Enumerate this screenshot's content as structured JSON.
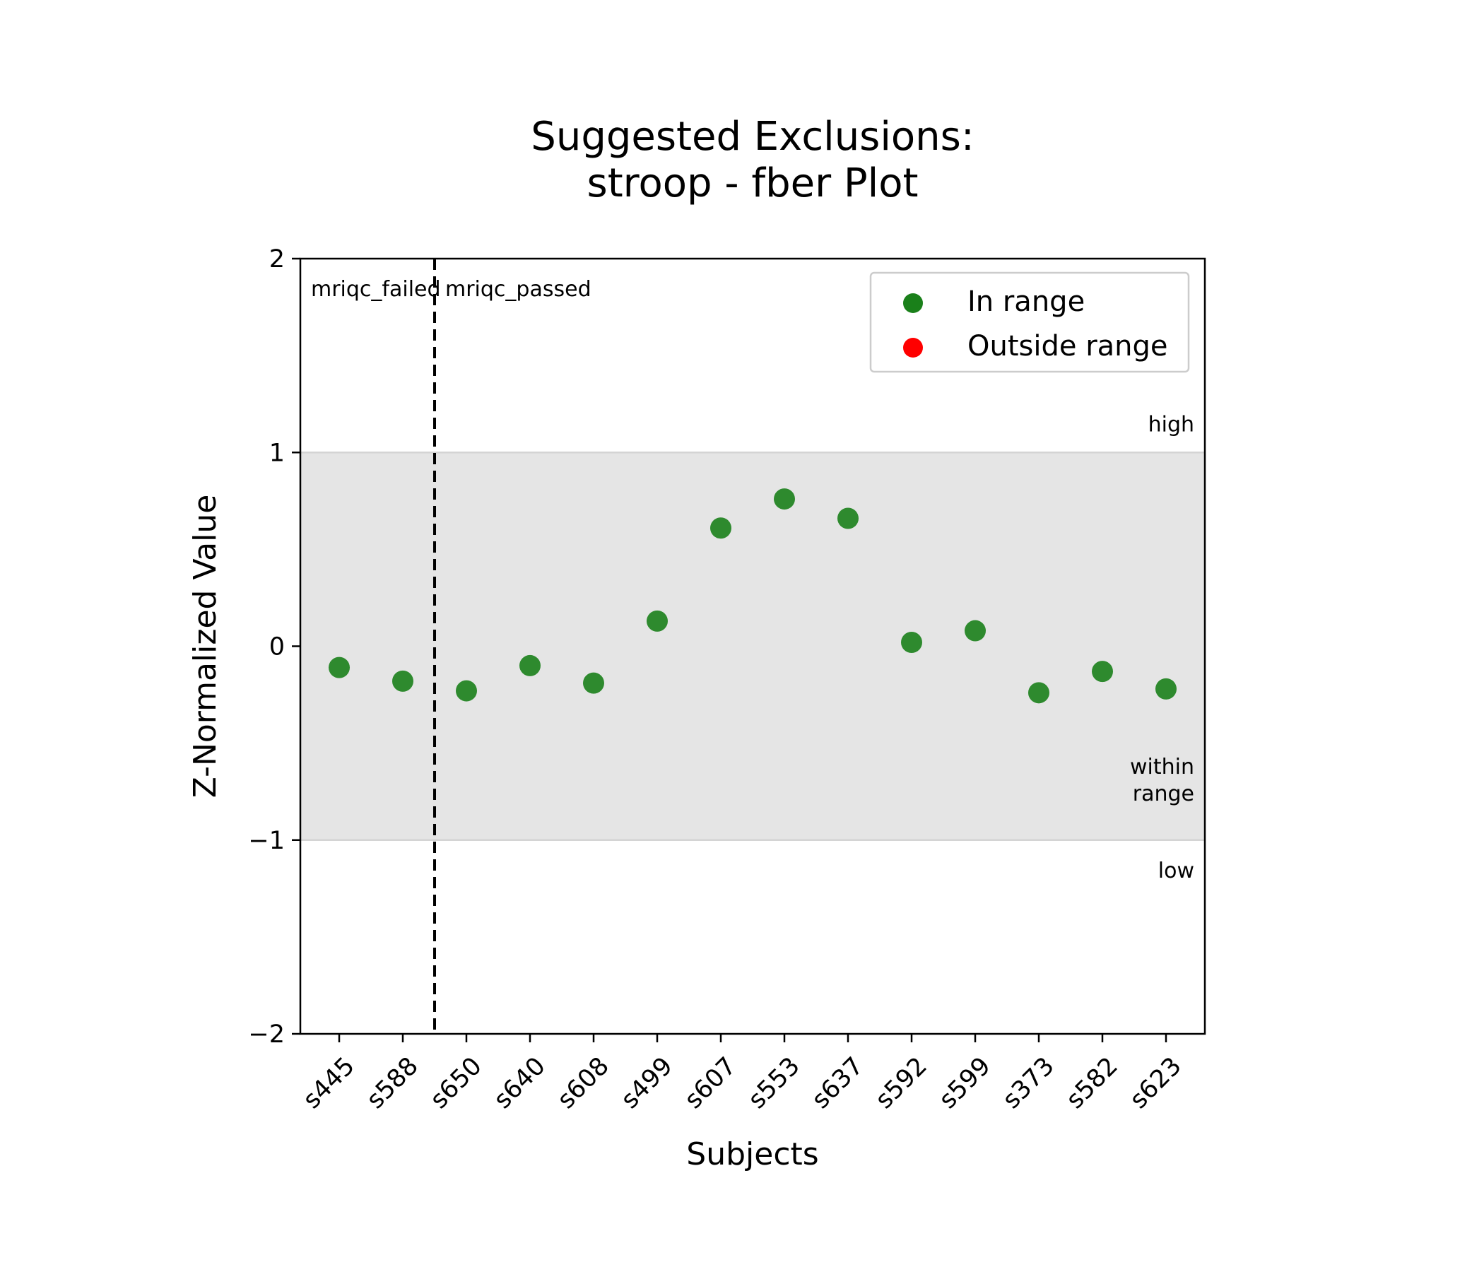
{
  "chart_data": {
    "type": "scatter",
    "title": "Suggested Exclusions:",
    "subtitle": "stroop - fber Plot",
    "xlabel": "Subjects",
    "ylabel": "Z-Normalized Value",
    "ylim": [
      -2,
      2
    ],
    "yticks": [
      2,
      1,
      0,
      -1,
      -2
    ],
    "ytick_labels": [
      "2",
      "1",
      "0",
      "−1",
      "−2"
    ],
    "categories": [
      "s445",
      "s588",
      "s650",
      "s640",
      "s608",
      "s499",
      "s607",
      "s553",
      "s637",
      "s592",
      "s599",
      "s373",
      "s582",
      "s623"
    ],
    "series": [
      {
        "name": "In range",
        "color": "#1a801a",
        "values": [
          -0.11,
          -0.18,
          -0.23,
          -0.1,
          -0.19,
          0.13,
          0.61,
          0.76,
          0.66,
          0.02,
          0.08,
          -0.24,
          -0.13,
          -0.22
        ]
      },
      {
        "name": "Outside range",
        "color": "#ff0000",
        "values": []
      }
    ],
    "range_band": {
      "low": -1,
      "high": 1,
      "color": "#e5e5e5",
      "line_color": "#d4d4d4"
    },
    "region_labels": {
      "high": "high",
      "within": [
        "within",
        "range"
      ],
      "low": "low"
    },
    "divider": {
      "after_category_index": 1,
      "left_label": "mriqc_failed",
      "right_label": "mriqc_passed",
      "style": "dashed"
    },
    "legend": {
      "position": "top-right",
      "entries": [
        "In range",
        "Outside range"
      ]
    },
    "grid": false
  }
}
